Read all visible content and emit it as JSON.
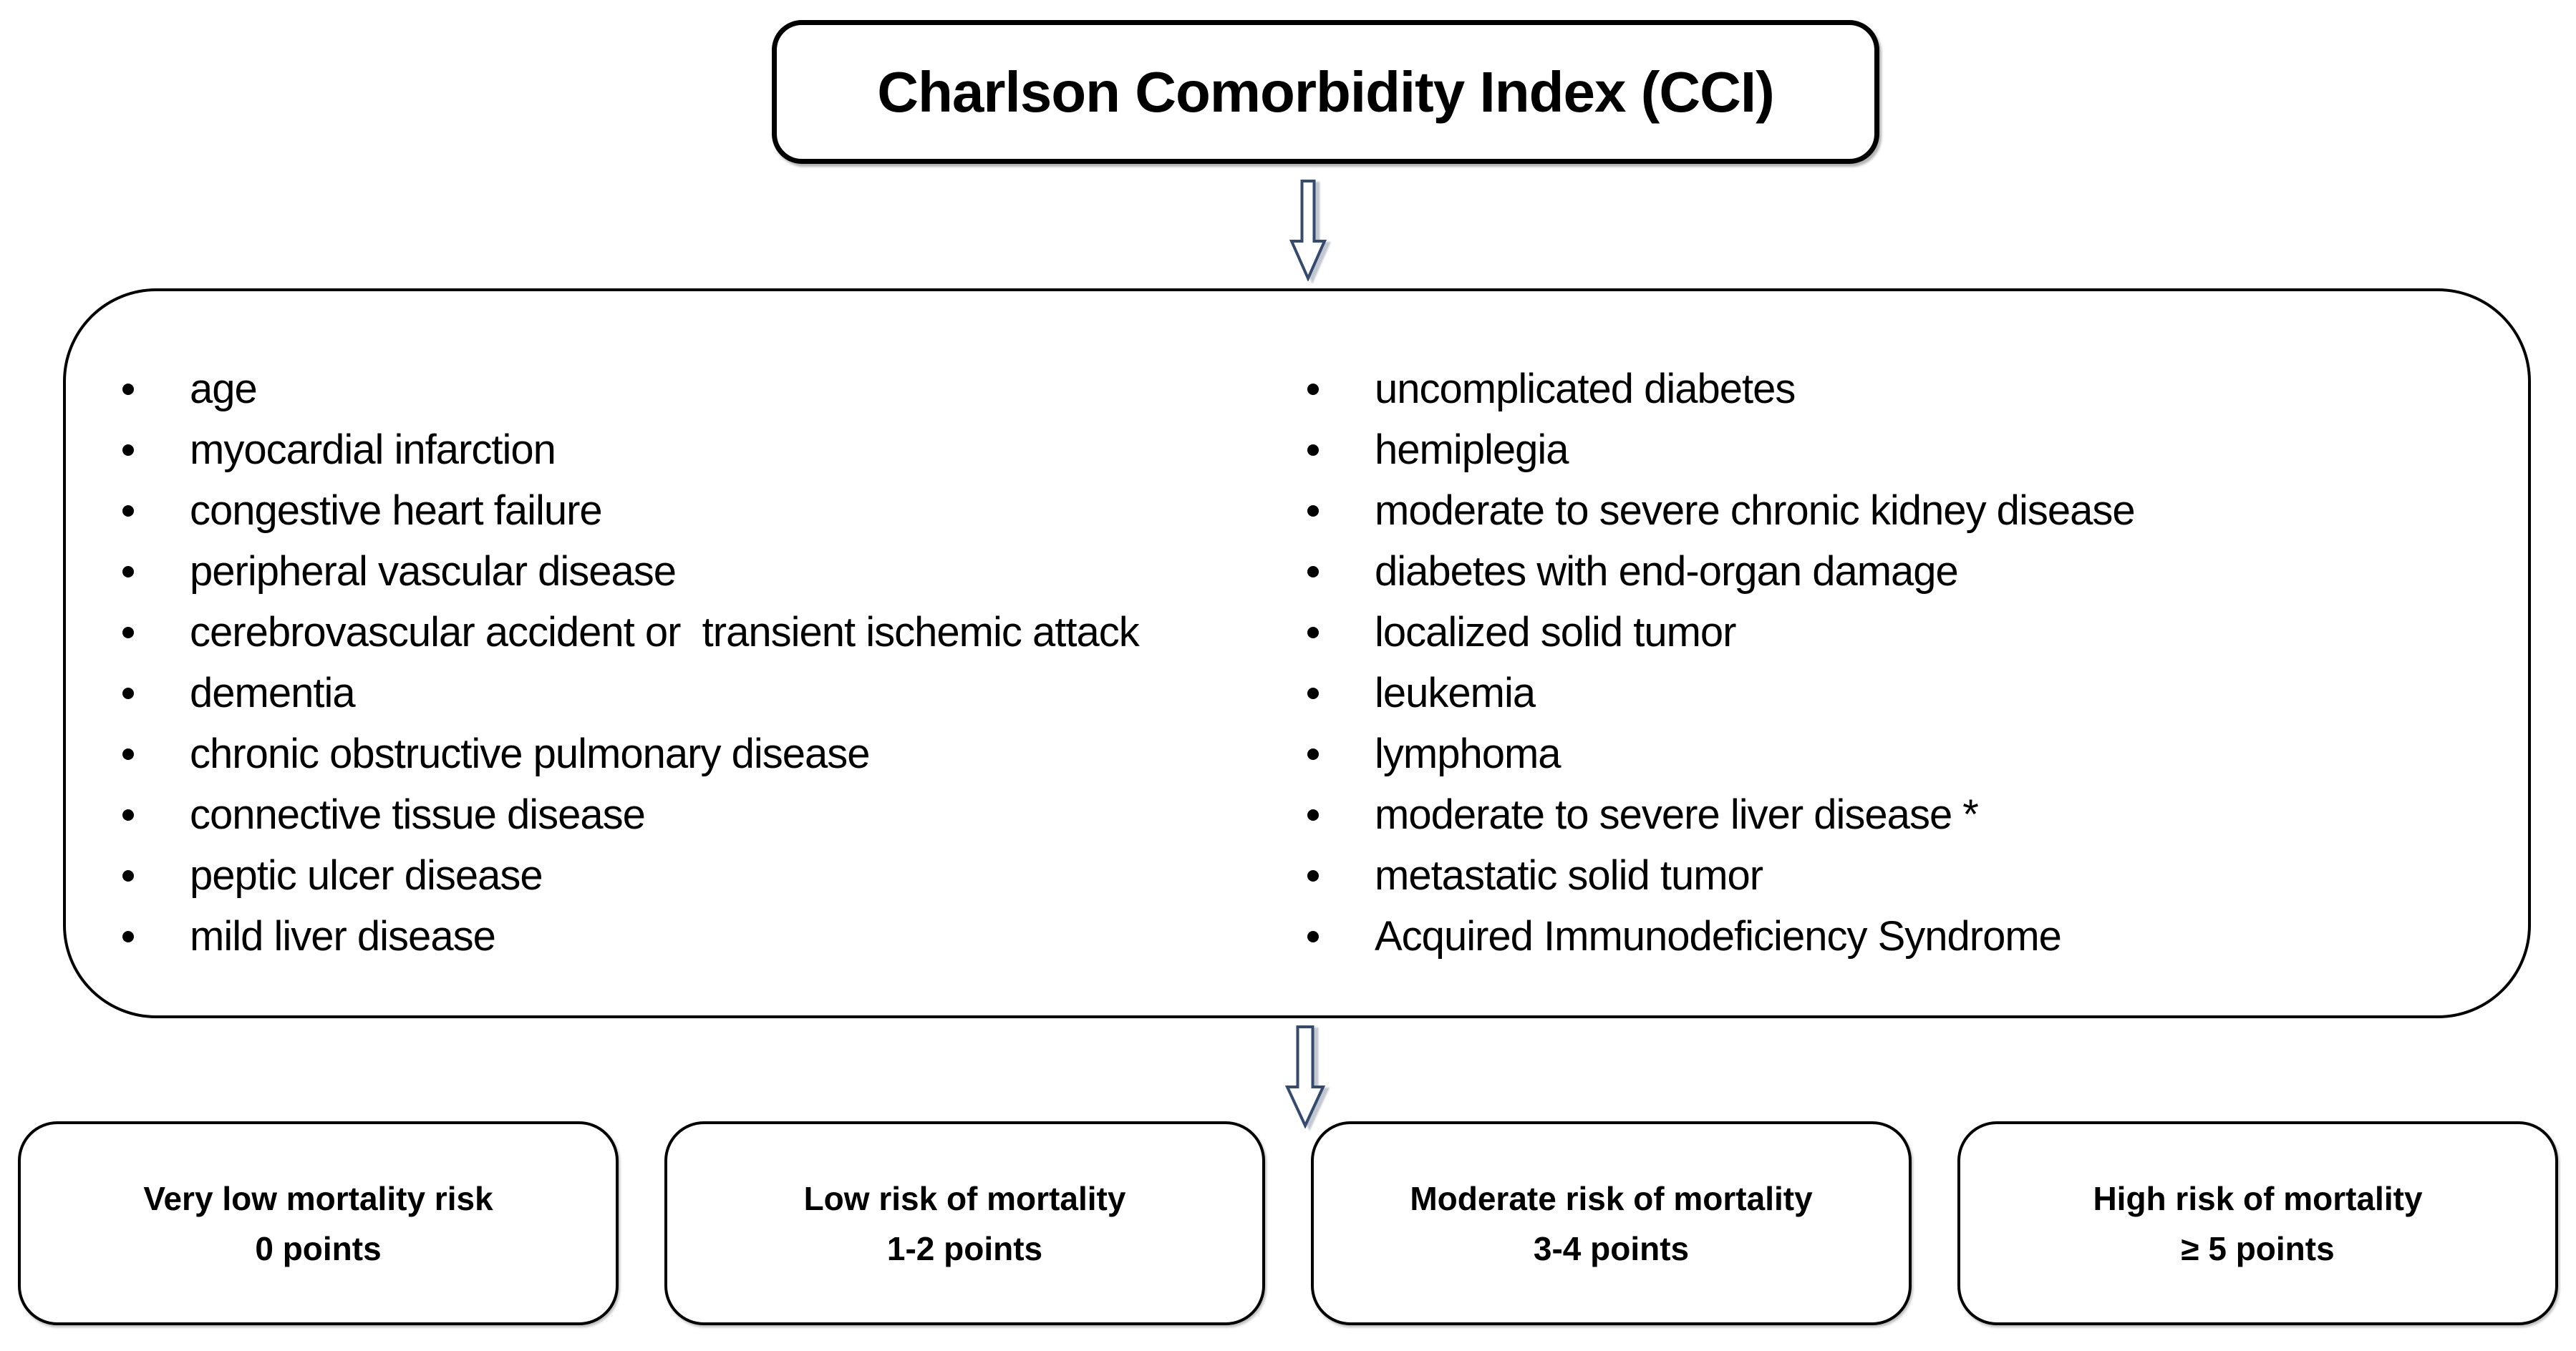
{
  "title": "Charlson Comorbidity Index (CCI)",
  "comorbidities": {
    "left_column": [
      "age",
      "myocardial infarction",
      "congestive heart failure",
      "peripheral vascular disease",
      "cerebrovascular accident or  transient ischemic attack",
      "dementia",
      "chronic obstructive pulmonary disease",
      "connective tissue disease",
      "peptic ulcer disease",
      "mild liver disease"
    ],
    "right_column": [
      "uncomplicated diabetes",
      "hemiplegia",
      "moderate to severe chronic kidney disease",
      "diabetes with end-organ damage",
      "localized solid tumor",
      "leukemia",
      "lymphoma",
      "moderate to severe liver disease *",
      "metastatic solid tumor",
      "Acquired Immunodeficiency Syndrome"
    ]
  },
  "risk_categories": [
    {
      "label": "Very low mortality risk",
      "points": "0 points"
    },
    {
      "label": "Low risk of mortality",
      "points": "1-2 points"
    },
    {
      "label": "Moderate risk of mortality",
      "points": "3-4 points"
    },
    {
      "label": "High risk of mortality",
      "points": "≥ 5 points"
    }
  ],
  "colors": {
    "arrow_outline": "#344A6E",
    "box_border": "#000000",
    "background": "#FFFFFF",
    "text": "#000000"
  }
}
